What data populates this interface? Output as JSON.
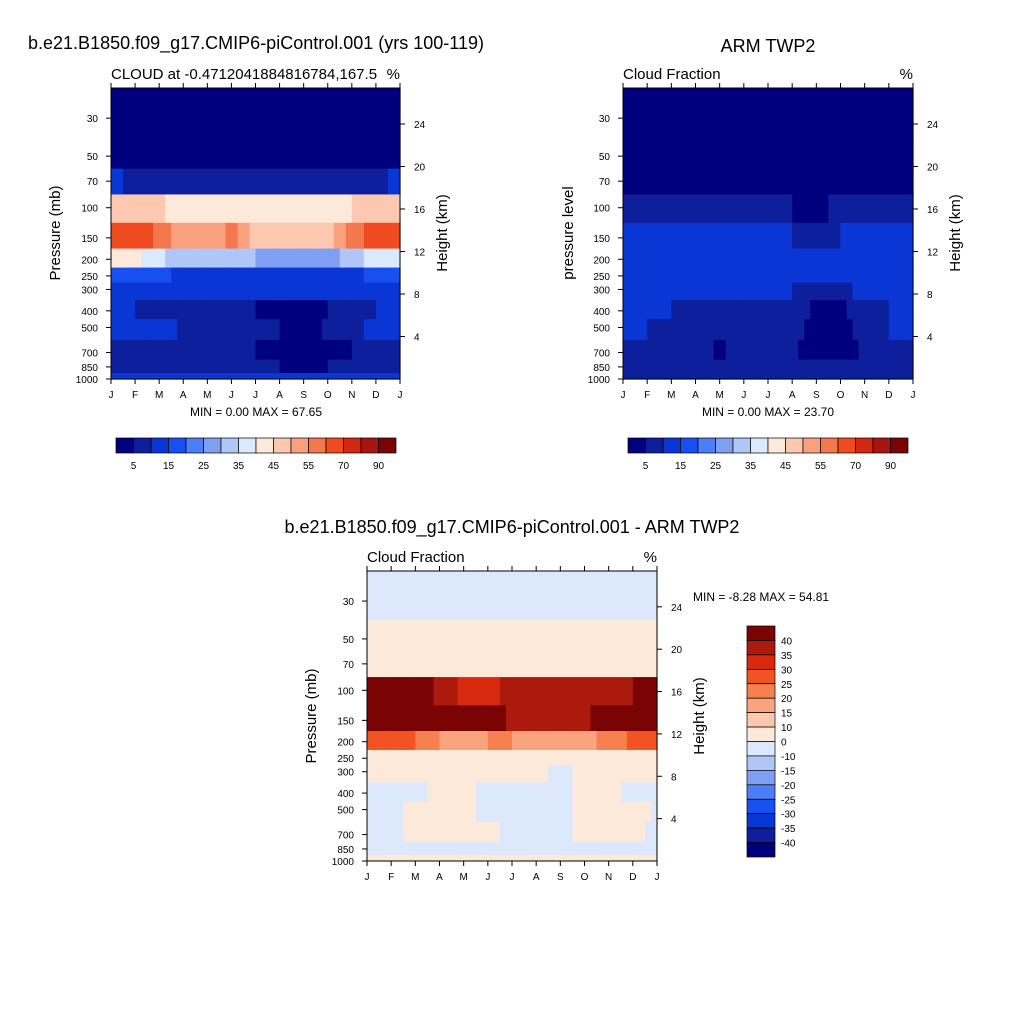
{
  "panels": {
    "model": {
      "title": "b.e21.B1850.f09_g17.CMIP6-piControl.001 (yrs 100-119)",
      "left_label": "CLOUD at -0.4712041884816784,167.5",
      "right_label": "%",
      "ylabel": "Pressure (mb)",
      "y2label": "Height (km)",
      "minmax": "MIN =   0.00 MAX =  67.65"
    },
    "obs": {
      "title": "ARM TWP2",
      "left_label": "Cloud Fraction",
      "right_label": "%",
      "ylabel": "pressure level",
      "y2label": "Height (km)",
      "minmax": "MIN =   0.00 MAX =  23.70"
    },
    "diff": {
      "title": "b.e21.B1850.f09_g17.CMIP6-piControl.001 - ARM TWP2",
      "left_label": "Cloud Fraction",
      "right_label": "%",
      "ylabel": "Pressure (mb)",
      "y2label": "Height (km)",
      "minmax": "MIN =  -8.28 MAX =  54.81"
    }
  },
  "colorbars": {
    "abs_colors": [
      "#00007f",
      "#0d1f9c",
      "#0a36d6",
      "#1650f0",
      "#4d7ef5",
      "#7fa0f2",
      "#b0c6f7",
      "#dce8fb",
      "#fde9d9",
      "#fcc8b0",
      "#f9a07e",
      "#f4784e",
      "#ee4c20",
      "#d42612",
      "#a8150c",
      "#7a0303"
    ],
    "abs_labels": [
      "5",
      "15",
      "25",
      "35",
      "45",
      "55",
      "70",
      "90"
    ],
    "diff_colors": [
      "#7a0303",
      "#ab1a0d",
      "#d92a0f",
      "#f25322",
      "#f7804f",
      "#f9a47f",
      "#fbc8ae",
      "#fde9d9",
      "#dce8fb",
      "#b0c6f7",
      "#7fa0f2",
      "#4d7ef5",
      "#1650f0",
      "#0a36d6",
      "#0d1f9c",
      "#00007f"
    ],
    "diff_labels": [
      "40",
      "35",
      "30",
      "25",
      "20",
      "15",
      "10",
      "0",
      "-10",
      "-15",
      "-20",
      "-25",
      "-30",
      "-35",
      "-40"
    ]
  },
  "chart_data": [
    {
      "type": "heatmap",
      "title": "b.e21.B1850.f09_g17.CMIP6-piControl.001 (yrs 100-119)",
      "subtitle": "CLOUD at -0.4712041884816784,167.5",
      "units": "%",
      "xlabel": "",
      "ylabel": "Pressure (mb)",
      "y2label": "Height (km)",
      "x": [
        "J",
        "F",
        "M",
        "A",
        "M",
        "J",
        "J",
        "A",
        "S",
        "O",
        "N",
        "D",
        "J"
      ],
      "y": [
        30,
        50,
        70,
        100,
        150,
        200,
        250,
        300,
        400,
        500,
        700,
        850,
        1000
      ],
      "y_scale": "log",
      "ylim": [
        1000,
        20
      ],
      "y2_ticks": [
        4,
        8,
        12,
        16,
        20,
        24
      ],
      "levels": [
        5,
        10,
        15,
        20,
        25,
        30,
        35,
        40,
        45,
        50,
        55,
        60,
        70,
        80,
        90
      ],
      "z_month_by_level": [
        [
          2,
          2,
          2,
          2,
          2,
          2,
          2,
          2,
          2,
          2,
          2,
          2,
          2
        ],
        [
          3,
          3,
          3,
          3,
          3,
          3,
          3,
          3,
          3,
          3,
          3,
          3,
          3
        ],
        [
          12,
          8,
          6,
          6,
          5,
          5,
          5,
          5,
          5,
          5,
          6,
          8,
          12
        ],
        [
          45,
          48,
          46,
          42,
          40,
          40,
          41,
          42,
          43,
          44,
          45,
          46,
          45
        ],
        [
          64,
          67,
          58,
          50,
          52,
          56,
          48,
          46,
          47,
          49,
          56,
          64,
          64
        ],
        [
          40,
          42,
          36,
          32,
          30,
          32,
          30,
          28,
          26,
          28,
          32,
          38,
          40
        ],
        [
          16,
          18,
          16,
          14,
          14,
          14,
          14,
          13,
          13,
          14,
          14,
          16,
          16
        ],
        [
          12,
          12,
          11,
          11,
          11,
          11,
          11,
          11,
          11,
          11,
          11,
          12,
          12
        ],
        [
          11,
          10,
          9,
          6,
          5,
          5,
          5,
          4,
          2,
          5,
          9,
          10,
          11
        ],
        [
          13,
          12,
          12,
          9,
          7,
          6,
          6,
          5,
          3,
          6,
          9,
          11,
          13
        ],
        [
          8,
          8,
          7,
          6,
          5,
          5,
          5,
          4,
          2,
          3,
          5,
          7,
          8
        ],
        [
          5,
          5,
          5,
          5,
          5,
          5,
          5,
          5,
          4,
          5,
          5,
          5,
          5
        ],
        [
          10,
          10,
          10,
          10,
          10,
          10,
          10,
          10,
          10,
          10,
          10,
          10,
          10
        ]
      ],
      "min": 0.0,
      "max": 67.65
    },
    {
      "type": "heatmap",
      "title": "ARM TWP2",
      "subtitle": "Cloud Fraction",
      "units": "%",
      "xlabel": "",
      "ylabel": "pressure level",
      "y2label": "Height (km)",
      "x": [
        "J",
        "F",
        "M",
        "A",
        "M",
        "J",
        "J",
        "A",
        "S",
        "O",
        "N",
        "D",
        "J"
      ],
      "y": [
        30,
        50,
        70,
        100,
        150,
        200,
        250,
        300,
        400,
        500,
        700,
        850,
        1000
      ],
      "y_scale": "log",
      "ylim": [
        1000,
        20
      ],
      "y2_ticks": [
        4,
        8,
        12,
        16,
        20,
        24
      ],
      "levels": [
        5,
        10,
        15,
        20,
        25,
        30,
        35,
        40,
        45,
        50,
        55,
        60,
        70,
        80,
        90
      ],
      "z_month_by_level": [
        [
          1,
          1,
          1,
          1,
          1,
          1,
          1,
          1,
          1,
          1,
          1,
          1,
          1
        ],
        [
          1,
          1,
          1,
          1,
          1,
          1,
          1,
          1,
          1,
          1,
          1,
          1,
          1
        ],
        [
          2,
          2,
          2,
          2,
          2,
          2,
          2,
          2,
          2,
          2,
          2,
          2,
          2
        ],
        [
          8,
          7,
          6,
          6,
          5,
          5,
          5,
          5,
          4,
          6,
          7,
          8,
          8
        ],
        [
          11,
          11,
          10,
          10,
          11,
          11,
          10,
          10,
          8,
          10,
          11,
          12,
          11
        ],
        [
          12,
          11,
          12,
          11,
          12,
          11,
          10,
          10,
          10,
          10,
          11,
          12,
          12
        ],
        [
          14,
          12,
          11,
          11,
          12,
          11,
          11,
          10,
          10,
          10,
          11,
          12,
          14
        ],
        [
          12,
          11,
          11,
          11,
          11,
          11,
          11,
          10,
          9,
          9,
          11,
          12,
          12
        ],
        [
          11,
          10,
          10,
          9,
          9,
          9,
          10,
          8,
          4,
          4,
          9,
          10,
          11
        ],
        [
          11,
          10,
          9,
          9,
          8,
          9,
          10,
          7,
          3,
          3,
          8,
          10,
          11
        ],
        [
          9,
          8,
          8,
          7,
          4,
          7,
          5,
          6,
          3,
          3,
          6,
          8,
          9
        ],
        [
          9,
          9,
          9,
          9,
          9,
          9,
          9,
          9,
          8,
          8,
          9,
          9,
          9
        ],
        [
          5,
          5,
          5,
          5,
          5,
          5,
          5,
          5,
          5,
          5,
          5,
          5,
          5
        ]
      ],
      "min": 0.0,
      "max": 23.7
    },
    {
      "type": "heatmap",
      "title": "b.e21.B1850.f09_g17.CMIP6-piControl.001 - ARM TWP2",
      "subtitle": "Cloud Fraction",
      "units": "%",
      "xlabel": "",
      "ylabel": "Pressure (mb)",
      "y2label": "Height (km)",
      "x": [
        "J",
        "F",
        "M",
        "A",
        "M",
        "J",
        "J",
        "A",
        "S",
        "O",
        "N",
        "D",
        "J"
      ],
      "y": [
        30,
        50,
        70,
        100,
        150,
        200,
        250,
        300,
        400,
        500,
        700,
        850,
        1000
      ],
      "y_scale": "log",
      "ylim": [
        1000,
        20
      ],
      "y2_ticks": [
        4,
        8,
        12,
        16,
        20,
        24
      ],
      "levels": [
        -40,
        -35,
        -30,
        -25,
        -20,
        -15,
        -10,
        0,
        10,
        15,
        20,
        25,
        30,
        35,
        40
      ],
      "z_month_by_level": [
        [
          -1,
          -1,
          -1,
          -1,
          -1,
          -1,
          -1,
          -1,
          -1,
          -1,
          -1,
          -1,
          -1
        ],
        [
          2,
          2,
          2,
          2,
          2,
          2,
          2,
          2,
          2,
          2,
          2,
          2,
          2
        ],
        [
          8,
          6,
          4,
          4,
          3,
          3,
          3,
          3,
          3,
          3,
          4,
          6,
          8
        ],
        [
          42,
          46,
          44,
          38,
          34,
          34,
          36,
          38,
          40,
          38,
          38,
          40,
          42
        ],
        [
          50,
          55,
          48,
          40,
          40,
          44,
          38,
          36,
          39,
          38,
          44,
          52,
          50
        ],
        [
          28,
          30,
          25,
          20,
          18,
          20,
          20,
          18,
          16,
          18,
          22,
          26,
          28
        ],
        [
          4,
          6,
          5,
          3,
          2,
          3,
          3,
          3,
          3,
          3,
          3,
          4,
          4
        ],
        [
          1,
          1,
          1,
          1,
          1,
          1,
          1,
          1,
          -1,
          1,
          1,
          1,
          1
        ],
        [
          -1,
          -1,
          -1,
          1,
          1,
          -1,
          -1,
          -1,
          -1,
          1,
          1,
          -1,
          -1
        ],
        [
          -1,
          -1,
          1,
          2,
          1,
          -1,
          -1,
          -1,
          -1,
          1,
          2,
          2,
          -1
        ],
        [
          -1,
          -1,
          1,
          1,
          1,
          1,
          -1,
          -1,
          -1,
          1,
          1,
          1,
          -1
        ],
        [
          -1,
          -1,
          -1,
          -1,
          -1,
          -1,
          -1,
          -1,
          -1,
          -1,
          -1,
          -1,
          -1
        ],
        [
          1,
          1,
          1,
          1,
          1,
          1,
          1,
          1,
          1,
          1,
          1,
          1,
          1
        ]
      ],
      "min": -8.28,
      "max": 54.81
    }
  ]
}
